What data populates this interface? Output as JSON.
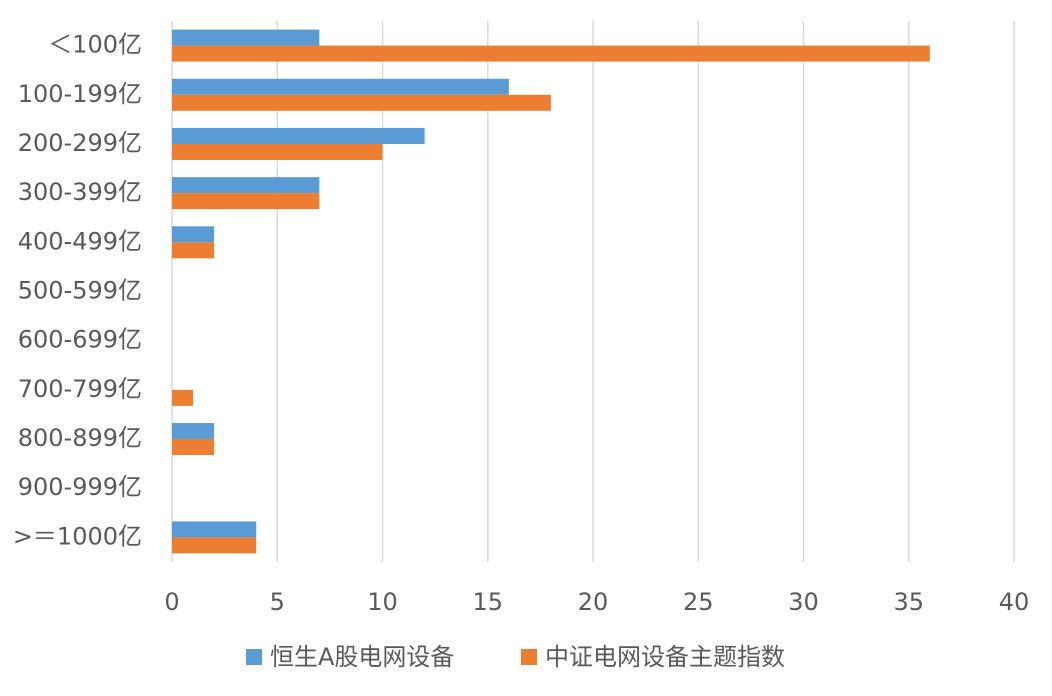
{
  "chart_data": {
    "type": "barh",
    "categories": [
      "＜100亿",
      "100-199亿",
      "200-299亿",
      "300-399亿",
      "400-499亿",
      "500-599亿",
      "600-699亿",
      "700-799亿",
      "800-899亿",
      "900-999亿",
      ">＝1000亿"
    ],
    "series": [
      {
        "name": "恒生A股电网设备",
        "color": "#5b9bd5",
        "values": [
          7,
          16,
          12,
          7,
          2,
          0,
          0,
          0,
          2,
          0,
          4
        ]
      },
      {
        "name": "中证电网设备主题指数",
        "color": "#ed7d31",
        "values": [
          36,
          18,
          10,
          7,
          2,
          0,
          0,
          1,
          2,
          0,
          4
        ]
      }
    ],
    "xlim": [
      0,
      40
    ],
    "xticks": [
      0,
      5,
      10,
      15,
      20,
      25,
      30,
      35,
      40
    ],
    "grid": true,
    "legend": "bottom"
  }
}
